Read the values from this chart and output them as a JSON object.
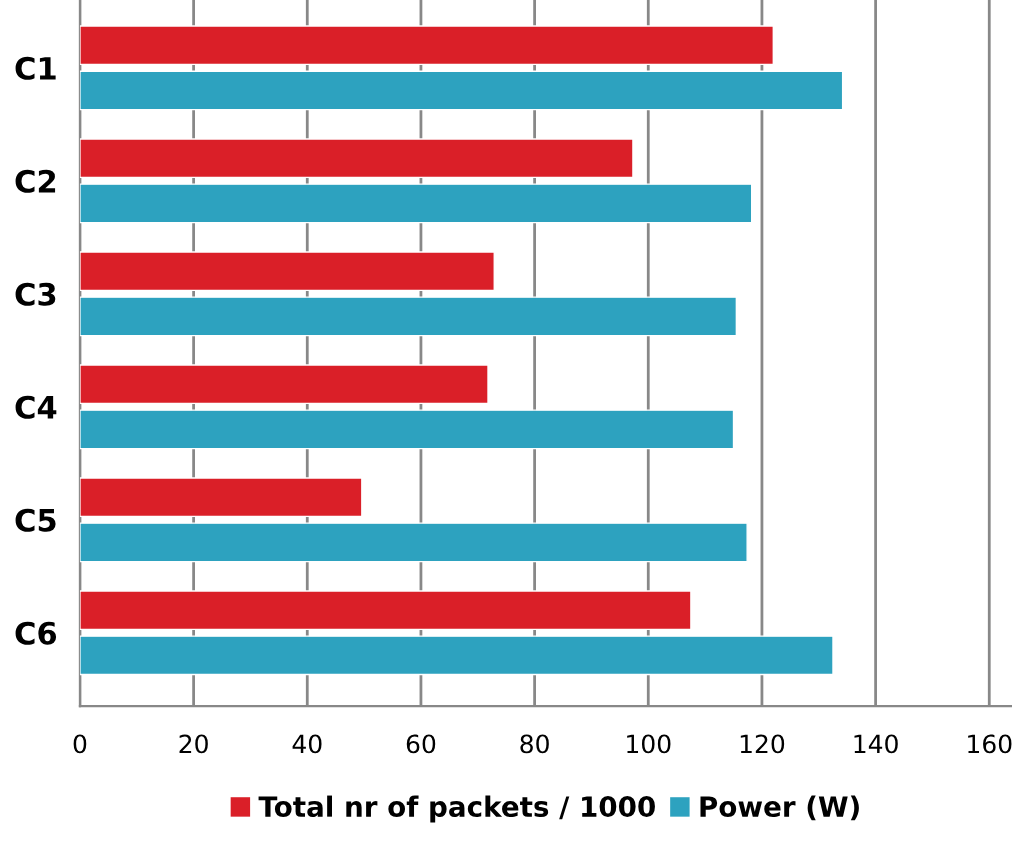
{
  "chart_data": {
    "type": "bar",
    "orientation": "horizontal",
    "categories": [
      "C1",
      "C2",
      "C3",
      "C4",
      "C5",
      "C6"
    ],
    "series": [
      {
        "name": "Total nr of packets / 1000",
        "color": "#da1f28",
        "values": [
          122,
          97.3,
          72.9,
          71.8,
          49.6,
          107.5
        ]
      },
      {
        "name": "Power (W)",
        "color": "#2da2bf",
        "values": [
          134.2,
          118.2,
          115.5,
          115,
          117.4,
          132.5
        ]
      }
    ],
    "xlim": [
      0,
      164
    ],
    "xticks": [
      0,
      20,
      40,
      60,
      80,
      100,
      120,
      140,
      160
    ],
    "grid": "x",
    "legend": "bottom"
  }
}
